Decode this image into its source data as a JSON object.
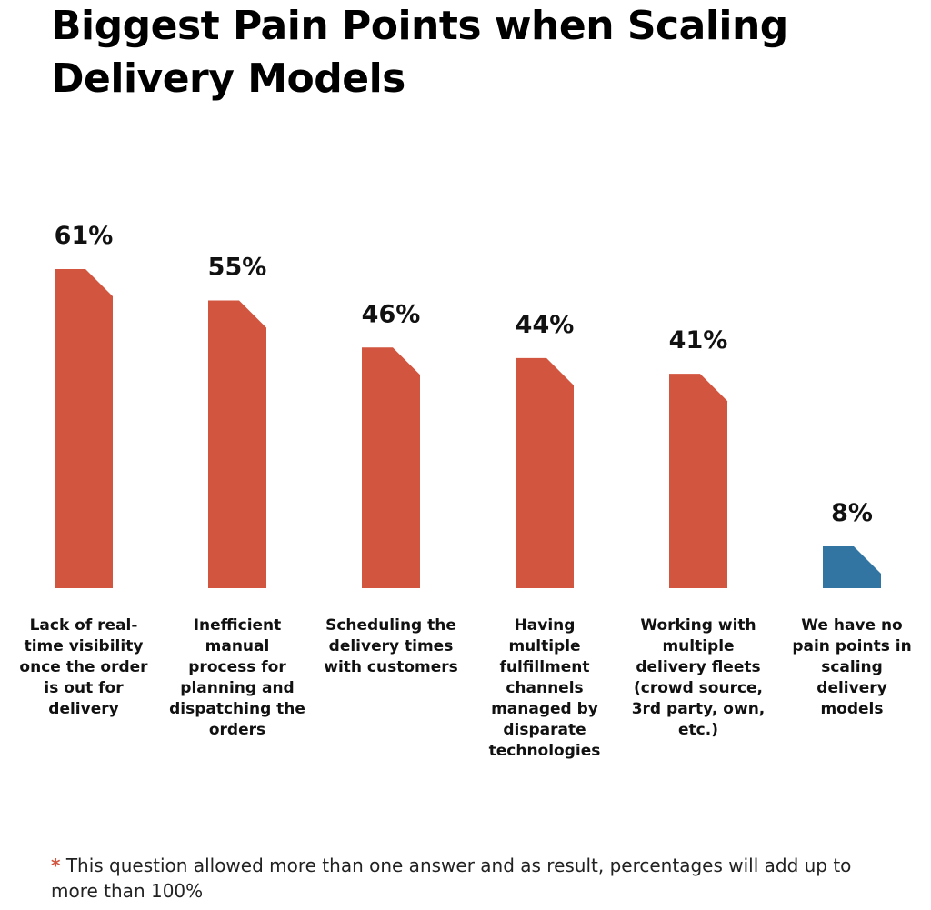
{
  "chart_data": {
    "type": "bar",
    "title": "Biggest Pain Points when Scaling Delivery Models",
    "categories": [
      "Lack of real-time visibility once the order is out for delivery",
      "Inefficient manual process for planning and dispatching the orders",
      "Scheduling the delivery times with customers",
      "Having multiple fulfillment channels managed by disparate technologies",
      "Working with multiple delivery fleets (crowd source, 3rd party, own, etc.)",
      "We have no pain points in scaling delivery models"
    ],
    "values": [
      61,
      55,
      46,
      44,
      41,
      8
    ],
    "value_labels": [
      "61%",
      "55%",
      "46%",
      "44%",
      "41%",
      "8%"
    ],
    "unit": "%",
    "ylim": [
      0,
      61
    ],
    "grid": false,
    "legend": "none",
    "colors": {
      "primary": "#d2553f",
      "highlight": "#3275a3"
    },
    "bar_colors": [
      "#d2553f",
      "#d2553f",
      "#d2553f",
      "#d2553f",
      "#d2553f",
      "#3275a3"
    ]
  },
  "footnote": {
    "marker": "*",
    "text": "This question allowed more than one answer and as result, percentages will add up to more than 100%"
  }
}
